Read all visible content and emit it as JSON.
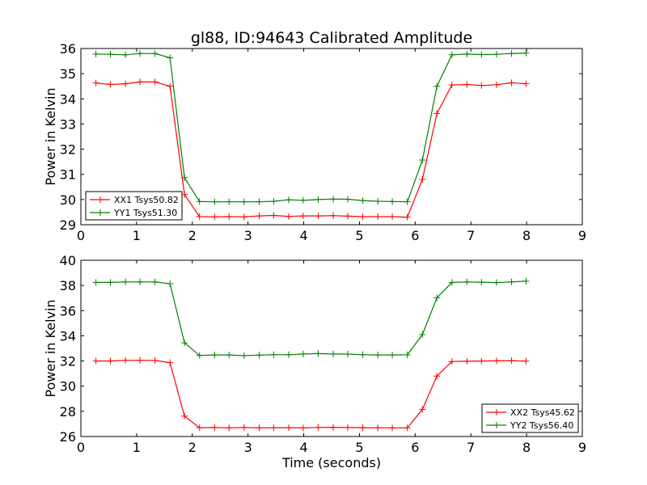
{
  "title": "gl88, ID:94643 Calibrated Amplitude",
  "chart_data": [
    {
      "type": "line",
      "ylabel": "Power in Kelvin",
      "xlabel": "",
      "xlim": [
        0,
        9
      ],
      "ylim": [
        29,
        36
      ],
      "xticks": [
        "0",
        "1",
        "2",
        "3",
        "4",
        "5",
        "6",
        "7",
        "8",
        "9"
      ],
      "yticks": [
        "29",
        "30",
        "31",
        "32",
        "33",
        "34",
        "35",
        "36"
      ],
      "grid": false,
      "legend_position": "lower-left",
      "x": [
        0.27,
        0.53,
        0.8,
        1.06,
        1.33,
        1.6,
        1.86,
        2.13,
        2.4,
        2.66,
        2.93,
        3.2,
        3.46,
        3.73,
        3.99,
        4.26,
        4.53,
        4.79,
        5.06,
        5.33,
        5.59,
        5.86,
        6.13,
        6.39,
        6.66,
        6.93,
        7.19,
        7.46,
        7.73,
        7.99
      ],
      "series": [
        {
          "name": "XX1 Tsys50.82",
          "color": "#ff0000",
          "values": [
            34.63,
            34.57,
            34.6,
            34.67,
            34.67,
            34.5,
            30.2,
            29.32,
            29.31,
            29.32,
            29.31,
            29.35,
            29.37,
            29.33,
            29.35,
            29.35,
            29.36,
            29.34,
            29.32,
            29.32,
            29.32,
            29.3,
            30.8,
            33.42,
            34.55,
            34.57,
            34.53,
            34.56,
            34.64,
            34.6
          ]
        },
        {
          "name": "YY1 Tsys51.30",
          "color": "#008000",
          "values": [
            35.78,
            35.77,
            35.75,
            35.8,
            35.8,
            35.63,
            30.87,
            29.92,
            29.91,
            29.91,
            29.91,
            29.91,
            29.93,
            29.99,
            29.97,
            30.0,
            30.02,
            30.01,
            29.96,
            29.93,
            29.92,
            29.91,
            31.57,
            34.5,
            35.75,
            35.78,
            35.76,
            35.77,
            35.8,
            35.82
          ]
        }
      ]
    },
    {
      "type": "line",
      "ylabel": "Power in Kelvin",
      "xlabel": "Time (seconds)",
      "xlim": [
        0,
        9
      ],
      "ylim": [
        26,
        40
      ],
      "xticks": [
        "0",
        "1",
        "2",
        "3",
        "4",
        "5",
        "6",
        "7",
        "8",
        "9"
      ],
      "yticks": [
        "26",
        "28",
        "30",
        "32",
        "34",
        "36",
        "38",
        "40"
      ],
      "grid": false,
      "legend_position": "lower-right",
      "x": [
        0.27,
        0.53,
        0.8,
        1.06,
        1.33,
        1.6,
        1.86,
        2.13,
        2.4,
        2.66,
        2.93,
        3.2,
        3.46,
        3.73,
        3.99,
        4.26,
        4.53,
        4.79,
        5.06,
        5.33,
        5.59,
        5.86,
        6.13,
        6.39,
        6.66,
        6.93,
        7.19,
        7.46,
        7.73,
        7.99
      ],
      "series": [
        {
          "name": "XX2 Tsys45.62",
          "color": "#ff0000",
          "values": [
            32.0,
            32.0,
            32.05,
            32.05,
            32.04,
            31.87,
            27.62,
            26.7,
            26.71,
            26.69,
            26.71,
            26.69,
            26.7,
            26.7,
            26.68,
            26.72,
            26.73,
            26.71,
            26.7,
            26.69,
            26.69,
            26.69,
            28.16,
            30.8,
            31.96,
            31.98,
            32.0,
            32.01,
            32.02,
            31.99
          ]
        },
        {
          "name": "YY2 Tsys56.40",
          "color": "#008000",
          "values": [
            38.24,
            38.24,
            38.28,
            38.28,
            38.28,
            38.14,
            33.44,
            32.44,
            32.48,
            32.48,
            32.42,
            32.47,
            32.5,
            32.5,
            32.55,
            32.59,
            32.55,
            32.55,
            32.5,
            32.48,
            32.48,
            32.49,
            34.1,
            37.02,
            38.24,
            38.28,
            38.26,
            38.23,
            38.28,
            38.34
          ]
        }
      ]
    }
  ]
}
